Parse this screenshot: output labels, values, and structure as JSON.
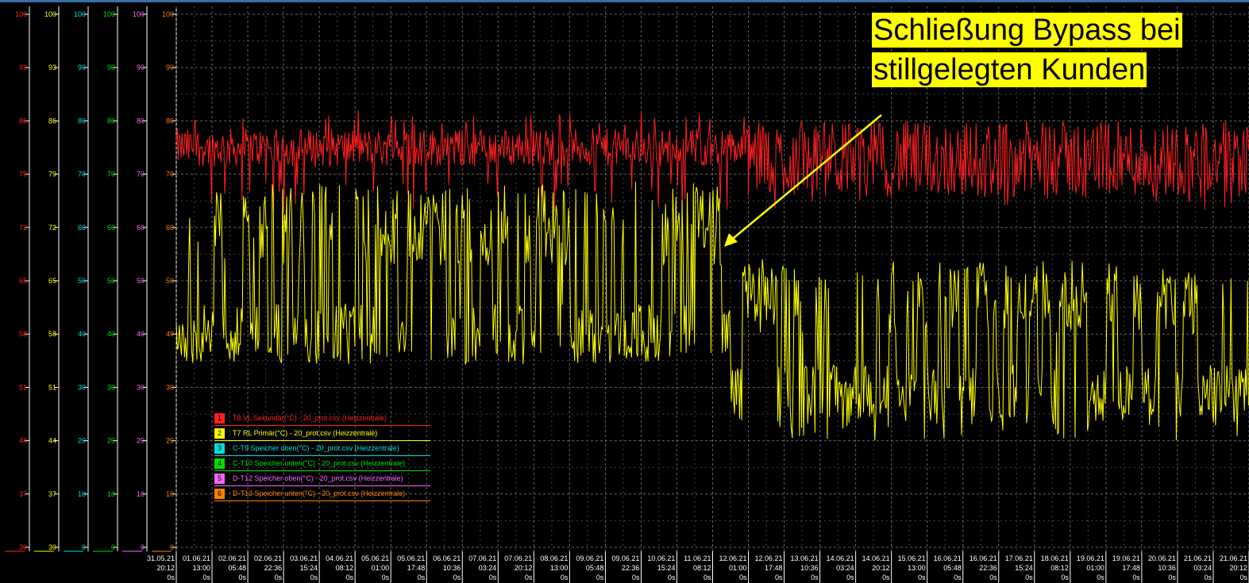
{
  "chart_data": {
    "type": "line",
    "annotation": [
      "Schließung Bypass bei",
      "stillgelegten Kunden"
    ],
    "y_axes": [
      {
        "color": "#ff2020",
        "ticks": [
          "100",
          "93",
          "86",
          "79",
          "72",
          "65",
          "58",
          "51",
          "44",
          "37",
          "30"
        ],
        "range": [
          30,
          100
        ]
      },
      {
        "color": "#ffff00",
        "ticks": [
          "100",
          "93",
          "86",
          "79",
          "72",
          "65",
          "58",
          "51",
          "44",
          "37",
          "30"
        ],
        "range": [
          30,
          100
        ]
      },
      {
        "color": "#00e0e0",
        "ticks": [
          "100",
          "90",
          "80",
          "70",
          "60",
          "50",
          "40",
          "30",
          "20",
          "10",
          "0"
        ],
        "range": [
          0,
          100
        ]
      },
      {
        "color": "#00e000",
        "ticks": [
          "100",
          "90",
          "80",
          "70",
          "60",
          "50",
          "40",
          "30",
          "20",
          "10",
          "0"
        ],
        "range": [
          0,
          100
        ]
      },
      {
        "color": "#ff66ff",
        "ticks": [
          "100",
          "90",
          "80",
          "70",
          "60",
          "50",
          "40",
          "30",
          "20",
          "10",
          "0"
        ],
        "range": [
          0,
          100
        ]
      },
      {
        "color": "#ff7f00",
        "ticks": [
          "100",
          "90",
          "80",
          "70",
          "60",
          "50",
          "40",
          "30",
          "20",
          "10",
          "0"
        ],
        "range": [
          0,
          100
        ]
      }
    ],
    "x_ticks": [
      {
        "date": "31.05.21",
        "time": "20:12",
        "sec": "0s"
      },
      {
        "date": "01.06.21",
        "time": "13:00",
        "sec": "0s"
      },
      {
        "date": "02.06.21",
        "time": "05:48",
        "sec": "0s"
      },
      {
        "date": "02.06.21",
        "time": "22:36",
        "sec": "0s"
      },
      {
        "date": "03.06.21",
        "time": "15:24",
        "sec": "0s"
      },
      {
        "date": "04.06.21",
        "time": "08:12",
        "sec": "0s"
      },
      {
        "date": "05.06.21",
        "time": "01:00",
        "sec": "0s"
      },
      {
        "date": "05.06.21",
        "time": "17:48",
        "sec": "0s"
      },
      {
        "date": "06.06.21",
        "time": "10:36",
        "sec": "0s"
      },
      {
        "date": "07.06.21",
        "time": "03:24",
        "sec": "0s"
      },
      {
        "date": "07.06.21",
        "time": "20:12",
        "sec": "0s"
      },
      {
        "date": "08.06.21",
        "time": "13:00",
        "sec": "0s"
      },
      {
        "date": "09.06.21",
        "time": "05:48",
        "sec": "0s"
      },
      {
        "date": "09.06.21",
        "time": "22:36",
        "sec": "0s"
      },
      {
        "date": "10.06.21",
        "time": "15:24",
        "sec": "0s"
      },
      {
        "date": "11.06.21",
        "time": "08:12",
        "sec": "0s"
      },
      {
        "date": "12.06.21",
        "time": "01:00",
        "sec": "0s"
      },
      {
        "date": "12.06.21",
        "time": "17:48",
        "sec": "0s"
      },
      {
        "date": "13.06.21",
        "time": "10:36",
        "sec": "0s"
      },
      {
        "date": "14.06.21",
        "time": "03:24",
        "sec": "0s"
      },
      {
        "date": "14.06.21",
        "time": "20:12",
        "sec": "0s"
      },
      {
        "date": "15.06.21",
        "time": "13:00",
        "sec": "0s"
      },
      {
        "date": "16.06.21",
        "time": "05:48",
        "sec": "0s"
      },
      {
        "date": "16.06.21",
        "time": "22:36",
        "sec": "0s"
      },
      {
        "date": "17.06.21",
        "time": "15:24",
        "sec": "0s"
      },
      {
        "date": "18.06.21",
        "time": "08:12",
        "sec": "0s"
      },
      {
        "date": "19.06.21",
        "time": "01:00",
        "sec": "0s"
      },
      {
        "date": "19.06.21",
        "time": "17:48",
        "sec": "0s"
      },
      {
        "date": "20.06.21",
        "time": "10:36",
        "sec": "0s"
      },
      {
        "date": "21.06.21",
        "time": "03:24",
        "sec": "0s"
      },
      {
        "date": "21.06.21",
        "time": "20:12",
        "sec": "0s"
      }
    ],
    "legend": [
      {
        "num": "1",
        "text": "T8 VL Sekundär(°C) - 20_prot.csv    (Heizzentrale)",
        "color": "#ff2020"
      },
      {
        "num": "2",
        "text": "T7 RL Primär(°C) - 20_prot.csv    (Heizzentrale)",
        "color": "#ffff00"
      },
      {
        "num": "3",
        "text": "C-T9 Speicher oben(°C) - 20_prot.csv    (Heizzentrale)",
        "color": "#00e0e0"
      },
      {
        "num": "4",
        "text": "C-T10 Speicher unten(°C) - 20_prot.csv    (Heizzentrale)",
        "color": "#00e000"
      },
      {
        "num": "5",
        "text": "D-T12 Speicher oben(°C) - 20_prot.csv    (Heizzentrale)",
        "color": "#ff66ff"
      },
      {
        "num": "6",
        "text": "D-T13 Speicher unten(°C) - 20_prot.csv    (Heizzentrale)",
        "color": "#ff7f00"
      }
    ],
    "x_range": [
      "31.05.21 20:12",
      "21.06.21 20:12"
    ],
    "series": [
      {
        "name": "T8 VL Sekundär(°C) - 20_prot.csv    (Heizzentrale)",
        "color": "#ff2020",
        "segments": [
          {
            "from": "31.05.21 20:12",
            "to": "12.06.21 01:00",
            "base": 82.5,
            "noise": 2.5,
            "spike_low": 74
          },
          {
            "from": "12.06.21 01:00",
            "to": "21.06.21 20:12",
            "base": 81,
            "noise": 5,
            "spike_low": 74
          }
        ]
      },
      {
        "name": "T7 RL Primär(°C) - 20_prot.csv    (Heizzentrale)",
        "color": "#ffff00",
        "segments": [
          {
            "from": "31.05.21 20:12",
            "to": "11.06.21 17:00",
            "high": 72,
            "low": 58,
            "peak": 78,
            "trough": 55
          },
          {
            "from": "11.06.21 17:00",
            "to": "21.06.21 20:12",
            "high": 63,
            "low": 50,
            "peak": 67,
            "trough": 44
          }
        ]
      }
    ]
  }
}
